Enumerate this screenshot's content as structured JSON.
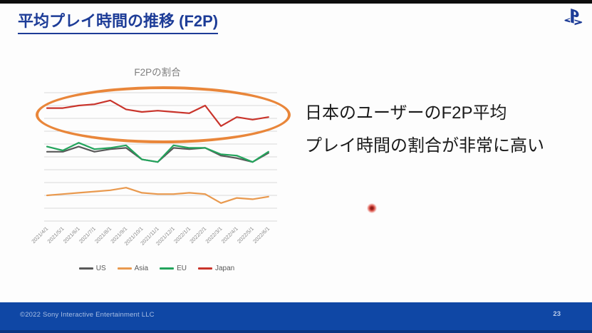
{
  "slide": {
    "title": "平均プレイ時間の推移 (F2P)",
    "footer_copyright": "©2022 Sony Interactive Entertainment LLC",
    "page_number": "23",
    "logo": "playstation-logo"
  },
  "annotation": {
    "line1": "日本のユーザーのF2P平均",
    "line2": "プレイ時間の割合が非常に高い"
  },
  "colors": {
    "title_blue": "#1d3c97",
    "footer_blue": "#0f47a5",
    "footer_text": "#a9bfe4",
    "highlight_ellipse_orange": "#e8802f",
    "gridline_gray": "#d9d9d9",
    "axis_label_gray": "#8c8c8c",
    "chart_title_gray": "#7f7f7f",
    "laser_pointer_red": "#d0453c"
  },
  "chart_data": {
    "type": "line",
    "title": "F2Pの割合",
    "categories": [
      "2021/4/1",
      "2021/5/1",
      "2021/6/1",
      "2021/7/1",
      "2021/8/1",
      "2021/9/1",
      "2021/10/1",
      "2021/11/1",
      "2021/12/1",
      "2022/1/1",
      "2022/2/1",
      "2022/3/1",
      "2022/4/1",
      "2022/5/1",
      "2022/6/1"
    ],
    "series": [
      {
        "name": "US",
        "color": "#595959",
        "values": [
          54,
          54,
          58,
          54,
          56,
          57,
          48,
          46,
          57,
          56,
          57,
          51,
          49,
          46,
          53
        ]
      },
      {
        "name": "Asia",
        "color": "#e9994e",
        "values": [
          20,
          21,
          22,
          23,
          24,
          26,
          22,
          21,
          21,
          22,
          21,
          14,
          18,
          17,
          19
        ]
      },
      {
        "name": "EU",
        "color": "#23a45c",
        "values": [
          58,
          55,
          61,
          56,
          57,
          59,
          48,
          46,
          59,
          57,
          57,
          52,
          51,
          46,
          54
        ]
      },
      {
        "name": "Japan",
        "color": "#c9342b",
        "values": [
          88,
          88,
          90,
          91,
          94,
          87,
          85,
          86,
          85,
          84,
          90,
          74,
          81,
          79,
          81
        ]
      }
    ],
    "ylim": [
      0,
      100
    ],
    "y_axis_labels_visible": false,
    "grid": true,
    "legend_position": "bottom",
    "annotation": "orange ellipse highlighting the Japan series"
  }
}
